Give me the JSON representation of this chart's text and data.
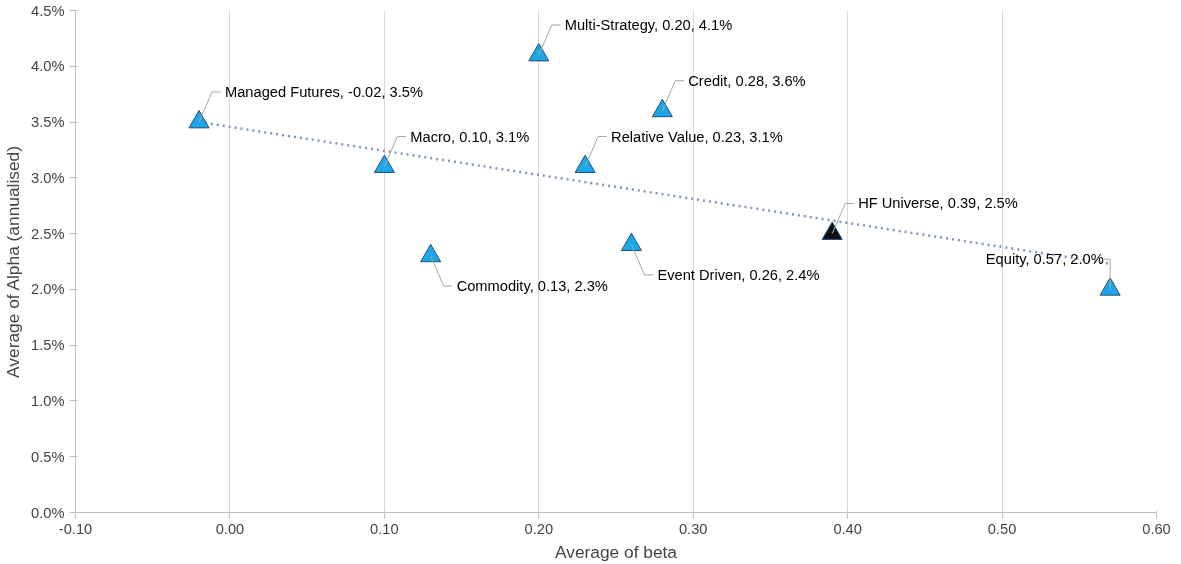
{
  "chart_data": {
    "type": "scatter",
    "xlabel": "Average of beta",
    "ylabel": "Average of Alpha (annualised)",
    "xlim": [
      -0.1,
      0.6
    ],
    "ylim": [
      0,
      4.5
    ],
    "xticks": [
      {
        "value": -0.1,
        "label": "-0.10"
      },
      {
        "value": 0,
        "label": "0.00"
      },
      {
        "value": 0.1,
        "label": "0.10"
      },
      {
        "value": 0.2,
        "label": "0.20"
      },
      {
        "value": 0.3,
        "label": "0.30"
      },
      {
        "value": 0.4,
        "label": "0.40"
      },
      {
        "value": 0.5,
        "label": "0.50"
      },
      {
        "value": 0.6,
        "label": "0.60"
      }
    ],
    "yticks": [
      {
        "value": 0,
        "label": "0.0%"
      },
      {
        "value": 0.5,
        "label": "0.5%"
      },
      {
        "value": 1,
        "label": "1.0%"
      },
      {
        "value": 1.5,
        "label": "1.5%"
      },
      {
        "value": 2,
        "label": "2.0%"
      },
      {
        "value": 2.5,
        "label": "2.5%"
      },
      {
        "value": 3,
        "label": "3.0%"
      },
      {
        "value": 3.5,
        "label": "3.5%"
      },
      {
        "value": 4,
        "label": "4.0%"
      },
      {
        "value": 4.5,
        "label": "4.5%"
      }
    ],
    "grid": "x",
    "series": [
      {
        "marker": "triangle",
        "x": [
          -0.02,
          0.1,
          0.13,
          0.2,
          0.23,
          0.26,
          0.28,
          0.39,
          0.57
        ],
        "values": [
          3.5,
          3.1,
          2.3,
          4.1,
          3.1,
          2.4,
          3.6,
          2.5,
          2.0
        ],
        "colors": [
          "#1ea7e8",
          "#1ea7e8",
          "#1ea7e8",
          "#1ea7e8",
          "#1ea7e8",
          "#1ea7e8",
          "#1ea7e8",
          "#111111",
          "#1ea7e8"
        ]
      },
      {
        "type": "line",
        "line_style": "dotted",
        "color": "#8096b4",
        "x": [
          -0.02,
          0.57
        ],
        "values": [
          3.5,
          2.23
        ]
      }
    ],
    "annotations": [
      {
        "text": "Managed Futures, -0.02, 3.5%",
        "x": -0.02,
        "y": 3.5
      },
      {
        "text": "Macro, 0.10, 3.1%",
        "x": 0.1,
        "y": 3.1
      },
      {
        "text": "Commodity, 0.13, 2.3%",
        "x": 0.13,
        "y": 2.3
      },
      {
        "text": "Multi-Strategy, 0.20, 4.1%",
        "x": 0.2,
        "y": 4.1
      },
      {
        "text": "Relative Value, 0.23, 3.1%",
        "x": 0.23,
        "y": 3.1
      },
      {
        "text": "Event Driven, 0.26, 2.4%",
        "x": 0.26,
        "y": 2.4
      },
      {
        "text": "Credit, 0.28, 3.6%",
        "x": 0.28,
        "y": 3.6
      },
      {
        "text": "HF Universe, 0.39, 2.5%",
        "x": 0.39,
        "y": 2.5
      },
      {
        "text": "Equity, 0.57, 2.0%",
        "x": 0.57,
        "y": 2.0
      }
    ]
  }
}
